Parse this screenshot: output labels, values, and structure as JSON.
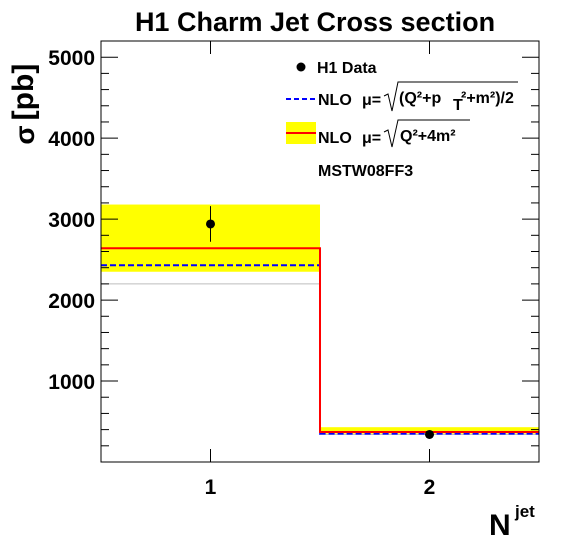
{
  "chart_data": {
    "type": "line",
    "title": "H1 Charm Jet Cross section",
    "xlabel": {
      "main": "N",
      "sup": "jet"
    },
    "ylabel": {
      "symbol": "σ",
      "unit": "[pb]"
    },
    "xlim": [
      0.5,
      2.5
    ],
    "ylim": [
      0,
      5200
    ],
    "x_ticks": [
      1,
      2
    ],
    "y_ticks": [
      1000,
      2000,
      3000,
      4000,
      5000
    ],
    "bins": [
      {
        "low": 0.5,
        "high": 1.5,
        "center": 1
      },
      {
        "low": 1.5,
        "high": 2.5,
        "center": 2
      }
    ],
    "series": [
      {
        "name": "H1 Data",
        "style": "points",
        "color": "#000000",
        "values": [
          2940,
          340
        ],
        "errors": [
          220,
          20
        ]
      },
      {
        "name": "NLO μ=√((Q²+p_T²+m²)/2)",
        "style": "dashed-step",
        "color": "#0000ff",
        "values": [
          2430,
          350
        ]
      },
      {
        "name": "NLO μ=√(Q²+4m²)",
        "style": "step-band",
        "color": "#ff0000",
        "band_color": "#ffff00",
        "values": [
          2640,
          370
        ],
        "band_low": [
          2350,
          350
        ],
        "band_high": [
          3180,
          430
        ],
        "lower_scale_line": [
          2200,
          340
        ]
      }
    ],
    "legend": {
      "position": "top-right",
      "entries": [
        {
          "text": "H1 Data"
        },
        {
          "pre": "NLO ",
          "mu": "μ=",
          "radicand": "(Q²+p",
          "sub": "T",
          "post": "²+m²)/2"
        },
        {
          "pre": "NLO ",
          "mu": "μ=",
          "radicand": "Q²+4m²"
        }
      ],
      "note": "MSTW08FF3"
    },
    "grid": false
  }
}
